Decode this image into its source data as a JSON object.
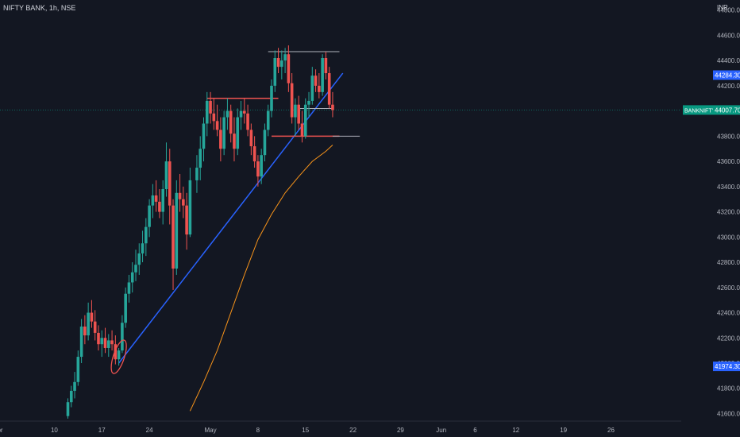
{
  "header": {
    "symbol_text": "NIFTY BANK, 1h, NSE",
    "currency": "INR"
  },
  "colors": {
    "background": "#131722",
    "up": "#26a69a",
    "down": "#ef5350",
    "trendline": "#2962ff",
    "ma": "#f7931a",
    "hline": "#ef5350",
    "grayline": "#b2b5be",
    "text": "#b2b5be",
    "label_blue": "#2962ff",
    "label_teal": "#089981"
  },
  "chart_data": {
    "type": "candlestick",
    "title": "NIFTY BANK, 1h, NSE",
    "ylabel": "INR",
    "ylim": [
      41540,
      44880
    ],
    "y_ticks": [
      41600,
      41800,
      42000,
      42200,
      42400,
      42600,
      42800,
      43000,
      43200,
      43400,
      43600,
      43800,
      44000,
      44200,
      44400,
      44600,
      44800
    ],
    "x_ticks": [
      {
        "label": "pr",
        "x": 0
      },
      {
        "label": "10",
        "x": 8
      },
      {
        "label": "17",
        "x": 15
      },
      {
        "label": "24",
        "x": 22
      },
      {
        "label": "May",
        "x": 31
      },
      {
        "label": "8",
        "x": 38
      },
      {
        "label": "15",
        "x": 45
      },
      {
        "label": "22",
        "x": 52
      },
      {
        "label": "29",
        "x": 59
      },
      {
        "label": "Jun",
        "x": 65
      },
      {
        "label": "6",
        "x": 70
      },
      {
        "label": "12",
        "x": 76
      },
      {
        "label": "19",
        "x": 83
      },
      {
        "label": "26",
        "x": 90
      }
    ],
    "price_labels": [
      {
        "text": "44284.30",
        "value": 44284.3,
        "style": "blue"
      },
      {
        "text": "44007.70",
        "value": 44007.7,
        "style": "teal",
        "name": "BANKNIFTY"
      },
      {
        "text": "41974.30",
        "value": 41974.3,
        "style": "blue"
      }
    ],
    "candles": [
      [
        10,
        41580,
        41720,
        41560,
        41690
      ],
      [
        10.5,
        41690,
        41820,
        41650,
        41780
      ],
      [
        11,
        41780,
        41930,
        41720,
        41850
      ],
      [
        11.5,
        41850,
        42100,
        41820,
        42050
      ],
      [
        12,
        42050,
        42350,
        42000,
        42290
      ],
      [
        12.5,
        42290,
        42380,
        42150,
        42220
      ],
      [
        13,
        42220,
        42480,
        42180,
        42400
      ],
      [
        13.5,
        42400,
        42500,
        42280,
        42330
      ],
      [
        14,
        42330,
        42420,
        42180,
        42240
      ],
      [
        14.5,
        42240,
        42300,
        42100,
        42150
      ],
      [
        15,
        42150,
        42260,
        42050,
        42200
      ],
      [
        15.5,
        42200,
        42280,
        42080,
        42120
      ],
      [
        16,
        42120,
        42230,
        42050,
        42180
      ],
      [
        16.5,
        42180,
        42260,
        42100,
        42150
      ],
      [
        17,
        42150,
        42220,
        41990,
        42030
      ],
      [
        17.5,
        42030,
        42120,
        41980,
        42100
      ],
      [
        18,
        42100,
        42380,
        42080,
        42320
      ],
      [
        18.5,
        42320,
        42600,
        42280,
        42550
      ],
      [
        19,
        42550,
        42700,
        42480,
        42640
      ],
      [
        19.5,
        42640,
        42800,
        42560,
        42720
      ],
      [
        20,
        42720,
        42900,
        42650,
        42780
      ],
      [
        20.5,
        42780,
        42950,
        42700,
        42870
      ],
      [
        21,
        42870,
        43050,
        42800,
        42950
      ],
      [
        21.5,
        42950,
        43150,
        42850,
        43080
      ],
      [
        22,
        43080,
        43300,
        43000,
        43250
      ],
      [
        22.5,
        43250,
        43420,
        43150,
        43330
      ],
      [
        23,
        43330,
        43450,
        43200,
        43280
      ],
      [
        23.5,
        43280,
        43380,
        43150,
        43200
      ],
      [
        24,
        43200,
        43450,
        43100,
        43380
      ],
      [
        24.5,
        43380,
        43750,
        43320,
        43600
      ],
      [
        25,
        43600,
        43700,
        43100,
        43250
      ],
      [
        25.5,
        43250,
        43300,
        42580,
        42750
      ],
      [
        26,
        42750,
        43450,
        42700,
        43350
      ],
      [
        26.5,
        43350,
        43500,
        43200,
        43300
      ],
      [
        27,
        43300,
        43400,
        43150,
        43250
      ],
      [
        27.5,
        43250,
        43350,
        42900,
        43020
      ],
      [
        28,
        43020,
        43550,
        43000,
        43450
      ],
      [
        29,
        43450,
        43650,
        43350,
        43550
      ],
      [
        29.5,
        43550,
        43800,
        43450,
        43700
      ],
      [
        30,
        43700,
        43950,
        43600,
        43900
      ],
      [
        30.5,
        43900,
        44150,
        43800,
        44080
      ],
      [
        31,
        44080,
        44150,
        43900,
        43980
      ],
      [
        31.5,
        43980,
        44100,
        43850,
        43920
      ],
      [
        32,
        43920,
        44050,
        43800,
        43850
      ],
      [
        32.5,
        43850,
        43950,
        43600,
        43700
      ],
      [
        33,
        43700,
        44000,
        43650,
        43950
      ],
      [
        33.5,
        43950,
        44100,
        43850,
        44000
      ],
      [
        34,
        44000,
        44050,
        43750,
        43820
      ],
      [
        34.5,
        43820,
        43950,
        43600,
        43700
      ],
      [
        35,
        43700,
        44020,
        43650,
        43950
      ],
      [
        35.5,
        43950,
        44080,
        43850,
        44000
      ],
      [
        36,
        44000,
        44100,
        43900,
        43980
      ],
      [
        36.5,
        43980,
        44050,
        43800,
        43850
      ],
      [
        37,
        43850,
        43900,
        43650,
        43720
      ],
      [
        37.5,
        43720,
        43800,
        43550,
        43600
      ],
      [
        38,
        43600,
        43650,
        43400,
        43480
      ],
      [
        38.5,
        43480,
        43700,
        43420,
        43650
      ],
      [
        39,
        43650,
        43900,
        43600,
        43850
      ],
      [
        39.5,
        43850,
        44050,
        43800,
        44000
      ],
      [
        40,
        44000,
        44250,
        43950,
        44200
      ],
      [
        40.5,
        44200,
        44480,
        44150,
        44420
      ],
      [
        41,
        44420,
        44500,
        44300,
        44350
      ],
      [
        41.5,
        44350,
        44480,
        44250,
        44400
      ],
      [
        42,
        44400,
        44500,
        44300,
        44450
      ],
      [
        42.5,
        44450,
        44520,
        44150,
        44220
      ],
      [
        43,
        44220,
        44300,
        43900,
        43950
      ],
      [
        43.5,
        43950,
        44100,
        43800,
        44050
      ],
      [
        44,
        44050,
        44120,
        43850,
        43900
      ],
      [
        44.5,
        43900,
        44000,
        43750,
        43800
      ],
      [
        45,
        43800,
        44100,
        43780,
        44050
      ],
      [
        45.5,
        44050,
        44150,
        43950,
        44080
      ],
      [
        46,
        44080,
        44350,
        44050,
        44280
      ],
      [
        46.5,
        44280,
        44330,
        44150,
        44200
      ],
      [
        47,
        44200,
        44300,
        44100,
        44150
      ],
      [
        47.5,
        44150,
        44450,
        44120,
        44420
      ],
      [
        48,
        44420,
        44470,
        44250,
        44300
      ],
      [
        48.5,
        44300,
        44350,
        44020,
        44050
      ],
      [
        49,
        44050,
        44150,
        43950,
        44007.7
      ]
    ],
    "ma": [
      [
        28,
        41620
      ],
      [
        30,
        41850
      ],
      [
        32,
        42100
      ],
      [
        34,
        42400
      ],
      [
        36,
        42700
      ],
      [
        38,
        42980
      ],
      [
        40,
        43180
      ],
      [
        42,
        43350
      ],
      [
        44,
        43480
      ],
      [
        46,
        43600
      ],
      [
        48,
        43680
      ],
      [
        49,
        43730
      ]
    ],
    "trendlines": [
      {
        "kind": "trend",
        "points": [
          [
            17.5,
            42000
          ],
          [
            50.5,
            44300
          ]
        ]
      }
    ],
    "horizontal_levels": [
      {
        "kind": "red",
        "value": 44100,
        "from": 30.5,
        "to": 41
      },
      {
        "kind": "gray",
        "value": 44470,
        "from": 39.5,
        "to": 50
      },
      {
        "kind": "gray",
        "value": 44020,
        "from": 44,
        "to": 49
      },
      {
        "kind": "red",
        "value": 43800,
        "from": 40,
        "to": 50
      },
      {
        "kind": "gray",
        "value": 43800,
        "from": 49,
        "to": 53
      }
    ]
  }
}
